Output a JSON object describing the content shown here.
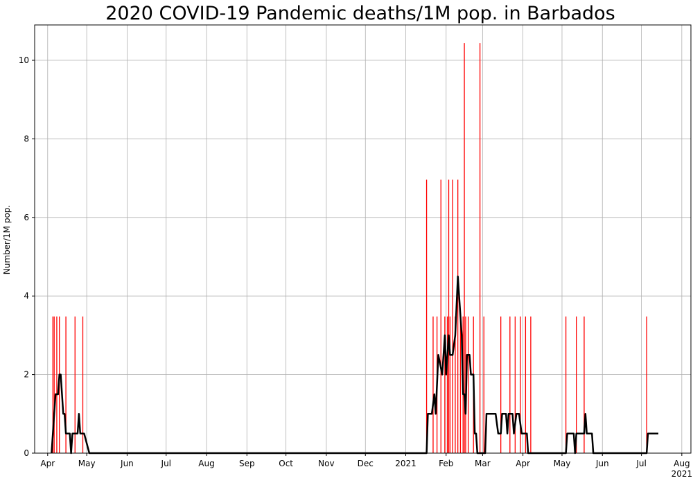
{
  "chart_data": {
    "type": "bar",
    "title": "2020 COVID-19 Pandemic deaths/1M pop. in Barbados",
    "xlabel": "",
    "ylabel": "Number/1M pop.",
    "x_axis_type": "date",
    "xlim": [
      "2020-03-22",
      "2021-08-08"
    ],
    "ylim": [
      0,
      10.9
    ],
    "yticks": [
      0,
      2,
      4,
      6,
      8,
      10
    ],
    "grid": true,
    "xticks": [
      {
        "date": "2020-04-01",
        "label": "Apr",
        "label2": ""
      },
      {
        "date": "2020-05-01",
        "label": "May",
        "label2": ""
      },
      {
        "date": "2020-06-01",
        "label": "Jun",
        "label2": ""
      },
      {
        "date": "2020-07-01",
        "label": "Jul",
        "label2": ""
      },
      {
        "date": "2020-08-01",
        "label": "Aug",
        "label2": ""
      },
      {
        "date": "2020-09-01",
        "label": "Sep",
        "label2": ""
      },
      {
        "date": "2020-10-01",
        "label": "Oct",
        "label2": ""
      },
      {
        "date": "2020-11-01",
        "label": "Nov",
        "label2": ""
      },
      {
        "date": "2020-12-01",
        "label": "Dec",
        "label2": ""
      },
      {
        "date": "2021-01-01",
        "label": "2021",
        "label2": ""
      },
      {
        "date": "2021-02-01",
        "label": "Feb",
        "label2": ""
      },
      {
        "date": "2021-03-01",
        "label": "Mar",
        "label2": ""
      },
      {
        "date": "2021-04-01",
        "label": "Apr",
        "label2": ""
      },
      {
        "date": "2021-05-01",
        "label": "May",
        "label2": ""
      },
      {
        "date": "2021-06-01",
        "label": "Jun",
        "label2": ""
      },
      {
        "date": "2021-07-01",
        "label": "Jul",
        "label2": ""
      },
      {
        "date": "2021-08-01",
        "label": "Aug",
        "label2": "2021"
      }
    ],
    "series": [
      {
        "type": "bar",
        "color": "#ff0000",
        "points": [
          [
            "2020-04-05",
            3.48
          ],
          [
            "2020-04-06",
            3.48
          ],
          [
            "2020-04-08",
            3.48
          ],
          [
            "2020-04-10",
            3.48
          ],
          [
            "2020-04-15",
            3.48
          ],
          [
            "2020-04-22",
            3.48
          ],
          [
            "2020-04-28",
            3.48
          ],
          [
            "2021-01-17",
            6.96
          ],
          [
            "2021-01-22",
            3.48
          ],
          [
            "2021-01-25",
            3.48
          ],
          [
            "2021-01-28",
            6.96
          ],
          [
            "2021-01-31",
            3.48
          ],
          [
            "2021-02-02",
            3.48
          ],
          [
            "2021-02-03",
            6.96
          ],
          [
            "2021-02-04",
            3.48
          ],
          [
            "2021-02-06",
            6.96
          ],
          [
            "2021-02-08",
            3.48
          ],
          [
            "2021-02-10",
            6.96
          ],
          [
            "2021-02-12",
            3.48
          ],
          [
            "2021-02-14",
            3.48
          ],
          [
            "2021-02-15",
            10.44
          ],
          [
            "2021-02-16",
            3.48
          ],
          [
            "2021-02-18",
            3.48
          ],
          [
            "2021-02-22",
            3.48
          ],
          [
            "2021-02-27",
            10.44
          ],
          [
            "2021-03-02",
            3.48
          ],
          [
            "2021-03-15",
            3.48
          ],
          [
            "2021-03-22",
            3.48
          ],
          [
            "2021-03-26",
            3.48
          ],
          [
            "2021-03-30",
            3.48
          ],
          [
            "2021-04-03",
            3.48
          ],
          [
            "2021-04-07",
            3.48
          ],
          [
            "2021-05-04",
            3.48
          ],
          [
            "2021-05-12",
            3.48
          ],
          [
            "2021-05-18",
            3.48
          ],
          [
            "2021-07-05",
            3.48
          ]
        ]
      },
      {
        "type": "line",
        "color": "#000000",
        "points": [
          [
            "2020-04-04",
            0
          ],
          [
            "2020-04-06",
            1.0
          ],
          [
            "2020-04-07",
            1.5
          ],
          [
            "2020-04-09",
            1.5
          ],
          [
            "2020-04-10",
            2.0
          ],
          [
            "2020-04-11",
            2.0
          ],
          [
            "2020-04-13",
            1.0
          ],
          [
            "2020-04-14",
            1.0
          ],
          [
            "2020-04-15",
            0.5
          ],
          [
            "2020-04-18",
            0.5
          ],
          [
            "2020-04-19",
            0
          ],
          [
            "2020-04-20",
            0.5
          ],
          [
            "2020-04-24",
            0.5
          ],
          [
            "2020-04-25",
            1.0
          ],
          [
            "2020-04-26",
            0.5
          ],
          [
            "2020-04-29",
            0.5
          ],
          [
            "2020-05-03",
            0
          ],
          [
            "2021-01-17",
            0
          ],
          [
            "2021-01-18",
            1.0
          ],
          [
            "2021-01-21",
            1.0
          ],
          [
            "2021-01-23",
            1.5
          ],
          [
            "2021-01-24",
            1.0
          ],
          [
            "2021-01-26",
            2.5
          ],
          [
            "2021-01-29",
            2.0
          ],
          [
            "2021-01-31",
            3.0
          ],
          [
            "2021-02-01",
            2.0
          ],
          [
            "2021-02-03",
            3.0
          ],
          [
            "2021-02-04",
            2.5
          ],
          [
            "2021-02-06",
            2.5
          ],
          [
            "2021-02-08",
            3.0
          ],
          [
            "2021-02-10",
            4.5
          ],
          [
            "2021-02-11",
            4.0
          ],
          [
            "2021-02-13",
            3.0
          ],
          [
            "2021-02-14",
            1.5
          ],
          [
            "2021-02-15",
            1.5
          ],
          [
            "2021-02-16",
            1.0
          ],
          [
            "2021-02-17",
            2.5
          ],
          [
            "2021-02-19",
            2.5
          ],
          [
            "2021-02-20",
            2.0
          ],
          [
            "2021-02-22",
            2.0
          ],
          [
            "2021-02-23",
            0.5
          ],
          [
            "2021-02-24",
            0.5
          ],
          [
            "2021-02-25",
            0
          ],
          [
            "2021-03-03",
            0
          ],
          [
            "2021-03-04",
            1.0
          ],
          [
            "2021-03-11",
            1.0
          ],
          [
            "2021-03-13",
            0.5
          ],
          [
            "2021-03-15",
            0.5
          ],
          [
            "2021-03-16",
            1.0
          ],
          [
            "2021-03-19",
            1.0
          ],
          [
            "2021-03-20",
            0.5
          ],
          [
            "2021-03-21",
            1.0
          ],
          [
            "2021-03-24",
            1.0
          ],
          [
            "2021-03-25",
            0.5
          ],
          [
            "2021-03-27",
            1.0
          ],
          [
            "2021-03-29",
            1.0
          ],
          [
            "2021-03-31",
            0.5
          ],
          [
            "2021-04-04",
            0.5
          ],
          [
            "2021-04-05",
            0
          ],
          [
            "2021-05-04",
            0
          ],
          [
            "2021-05-05",
            0.5
          ],
          [
            "2021-05-10",
            0.5
          ],
          [
            "2021-05-11",
            0
          ],
          [
            "2021-05-12",
            0.5
          ],
          [
            "2021-05-18",
            0.5
          ],
          [
            "2021-05-19",
            1.0
          ],
          [
            "2021-05-20",
            0.5
          ],
          [
            "2021-05-24",
            0.5
          ],
          [
            "2021-05-25",
            0
          ],
          [
            "2021-07-05",
            0
          ],
          [
            "2021-07-06",
            0.5
          ],
          [
            "2021-07-14",
            0.5
          ]
        ]
      }
    ]
  }
}
